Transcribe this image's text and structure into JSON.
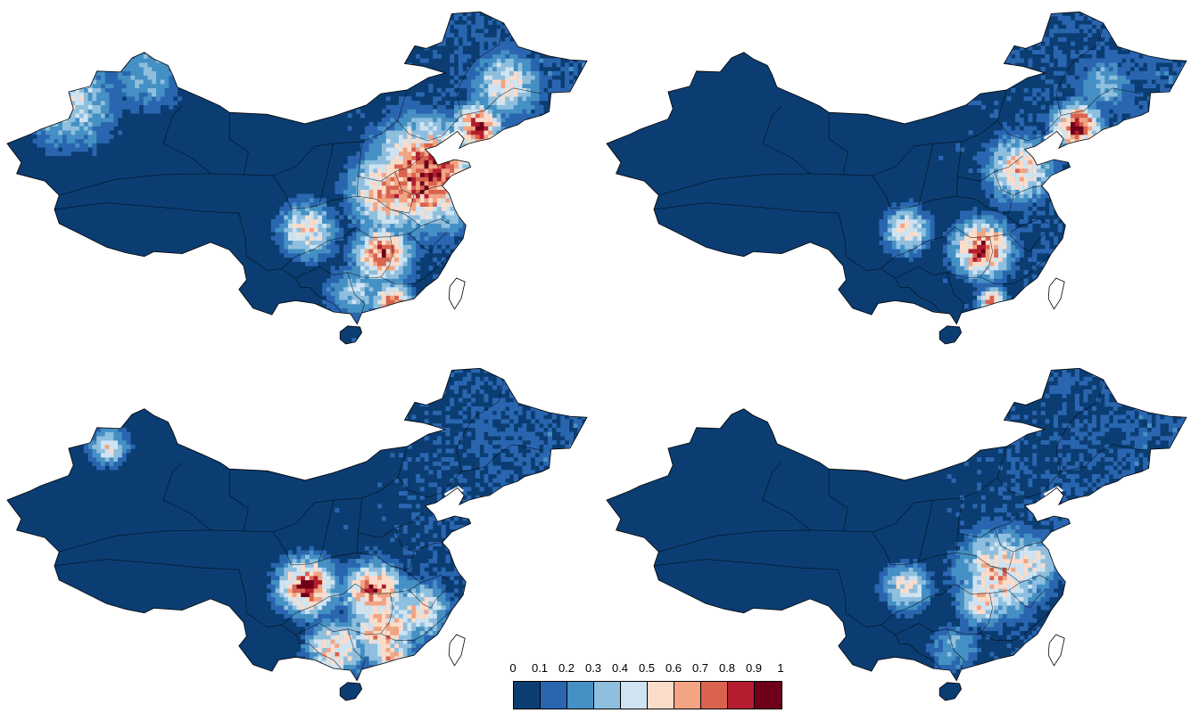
{
  "colorbar": {
    "labels": [
      "0",
      "0.1",
      "0.2",
      "0.3",
      "0.4",
      "0.5",
      "0.6",
      "0.7",
      "0.8",
      "0.9",
      "1"
    ],
    "colors": [
      "#0b3d72",
      "#2a66b0",
      "#4590c4",
      "#8fbfde",
      "#cfe3f1",
      "#fbdcca",
      "#f2a483",
      "#d9634f",
      "#b31d2f",
      "#6e0019"
    ]
  },
  "maps": [
    {
      "id": "tl",
      "hotspots": [
        {
          "lon": 117.5,
          "lat": 36.5,
          "v": 0.88,
          "r": 5.5
        },
        {
          "lon": 113.5,
          "lat": 34.5,
          "v": 0.72,
          "r": 4
        },
        {
          "lon": 113,
          "lat": 28,
          "v": 0.8,
          "r": 3
        },
        {
          "lon": 105,
          "lat": 30.5,
          "v": 0.58,
          "r": 3
        },
        {
          "lon": 123,
          "lat": 41.5,
          "v": 0.85,
          "r": 2.5
        },
        {
          "lon": 126,
          "lat": 46,
          "v": 0.55,
          "r": 3.5
        },
        {
          "lon": 114,
          "lat": 23,
          "v": 0.75,
          "r": 2
        },
        {
          "lon": 80,
          "lat": 44,
          "v": 0.45,
          "r": 5
        },
        {
          "lon": 88,
          "lat": 47,
          "v": 0.35,
          "r": 4
        },
        {
          "lon": 110,
          "lat": 24,
          "v": 0.4,
          "r": 3
        }
      ]
    },
    {
      "id": "tr",
      "hotspots": [
        {
          "lon": 123,
          "lat": 41.5,
          "v": 0.88,
          "r": 2.5
        },
        {
          "lon": 117,
          "lat": 37,
          "v": 0.62,
          "r": 3.5
        },
        {
          "lon": 113,
          "lat": 28.5,
          "v": 0.85,
          "r": 3
        },
        {
          "lon": 105,
          "lat": 30.5,
          "v": 0.55,
          "r": 2.5
        },
        {
          "lon": 114,
          "lat": 23,
          "v": 0.7,
          "r": 1.5
        },
        {
          "lon": 126,
          "lat": 46,
          "v": 0.35,
          "r": 3
        }
      ]
    },
    {
      "id": "bl",
      "hotspots": [
        {
          "lon": 105,
          "lat": 30.5,
          "v": 0.85,
          "r": 3
        },
        {
          "lon": 112,
          "lat": 30,
          "v": 0.8,
          "r": 3
        },
        {
          "lon": 113,
          "lat": 26,
          "v": 0.68,
          "r": 3.5
        },
        {
          "lon": 108,
          "lat": 24,
          "v": 0.65,
          "r": 3
        },
        {
          "lon": 117,
          "lat": 28,
          "v": 0.6,
          "r": 3
        },
        {
          "lon": 84,
          "lat": 45.5,
          "v": 0.55,
          "r": 2
        },
        {
          "lon": 114,
          "lat": 23,
          "v": 0.7,
          "r": 2
        }
      ]
    },
    {
      "id": "br",
      "hotspots": [
        {
          "lon": 115,
          "lat": 32,
          "v": 0.65,
          "r": 4.5
        },
        {
          "lon": 105,
          "lat": 30.5,
          "v": 0.55,
          "r": 2.5
        },
        {
          "lon": 118,
          "lat": 33,
          "v": 0.55,
          "r": 3
        },
        {
          "lon": 113,
          "lat": 29,
          "v": 0.6,
          "r": 2.5
        },
        {
          "lon": 110,
          "lat": 24,
          "v": 0.3,
          "r": 3
        }
      ]
    }
  ]
}
